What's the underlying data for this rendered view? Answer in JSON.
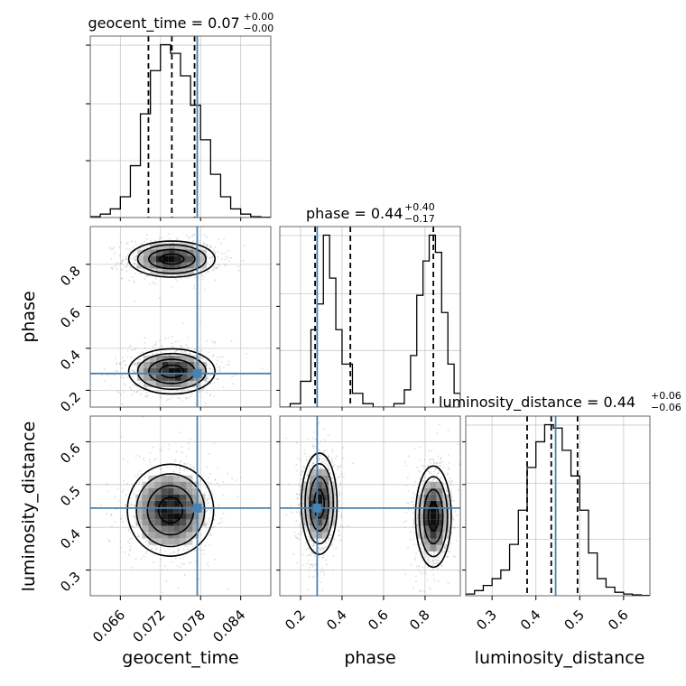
{
  "chart_data": {
    "type": "corner",
    "parameters": [
      "geocent_time",
      "phase",
      "luminosity_distance"
    ],
    "truth": {
      "geocent_time": 0.0775,
      "phase": 0.28,
      "luminosity_distance": 0.445
    },
    "colors": {
      "truth": "#4682b4",
      "hist": "#000000",
      "grid": "#c8c8c8",
      "points": "#9a9a9a"
    },
    "grid": true,
    "diagonal": [
      {
        "parameter": "geocent_time",
        "title_main": "geocent_time = 0.07",
        "title_plus": "+0.00",
        "title_minus": "−0.00",
        "xlim": [
          0.0615,
          0.0885
        ],
        "ylim": [
          0,
          1.05
        ],
        "quantiles": [
          0.0702,
          0.0737,
          0.0771
        ],
        "hist_x": [
          0.0615,
          0.063,
          0.0645,
          0.066,
          0.0675,
          0.069,
          0.0705,
          0.072,
          0.0735,
          0.075,
          0.0765,
          0.078,
          0.0795,
          0.081,
          0.0825,
          0.084,
          0.0855,
          0.087,
          0.0885
        ],
        "hist_y": [
          0.005,
          0.02,
          0.05,
          0.12,
          0.3,
          0.6,
          0.85,
          1.0,
          0.95,
          0.82,
          0.65,
          0.45,
          0.25,
          0.12,
          0.05,
          0.02,
          0.005,
          0.002
        ],
        "xticks": [],
        "xtick_labels": []
      },
      {
        "parameter": "phase",
        "title_main": "phase = 0.44",
        "title_plus": "+0.40",
        "title_minus": "−0.17",
        "xlim": [
          0.1,
          0.97
        ],
        "ylim": [
          0,
          1.05
        ],
        "quantiles": [
          0.27,
          0.44,
          0.84
        ],
        "hist_x": [
          0.1,
          0.15,
          0.2,
          0.25,
          0.28,
          0.31,
          0.34,
          0.37,
          0.4,
          0.45,
          0.5,
          0.55,
          0.6,
          0.65,
          0.7,
          0.73,
          0.76,
          0.79,
          0.82,
          0.85,
          0.88,
          0.91,
          0.94,
          0.97
        ],
        "hist_y": [
          0.0,
          0.02,
          0.15,
          0.45,
          0.6,
          1.0,
          0.75,
          0.45,
          0.25,
          0.08,
          0.02,
          0.0,
          0.0,
          0.02,
          0.1,
          0.3,
          0.65,
          0.85,
          1.0,
          0.9,
          0.55,
          0.25,
          0.08
        ],
        "xticks": [
          0.2,
          0.4,
          0.6,
          0.8
        ],
        "xtick_labels": [
          "0.2",
          "0.4",
          "0.6",
          "0.8"
        ]
      },
      {
        "parameter": "luminosity_distance",
        "title_main": "luminosity_distance = 0.44",
        "title_plus": "+0.06",
        "title_minus": "−0.06",
        "xlim": [
          0.24,
          0.66
        ],
        "ylim": [
          0,
          1.05
        ],
        "quantiles": [
          0.38,
          0.435,
          0.495
        ],
        "hist_x": [
          0.24,
          0.26,
          0.28,
          0.3,
          0.32,
          0.34,
          0.36,
          0.38,
          0.4,
          0.42,
          0.44,
          0.46,
          0.48,
          0.5,
          0.52,
          0.54,
          0.56,
          0.58,
          0.6,
          0.62,
          0.64,
          0.66
        ],
        "hist_y": [
          0.01,
          0.03,
          0.06,
          0.1,
          0.15,
          0.3,
          0.5,
          0.75,
          0.9,
          1.0,
          0.98,
          0.85,
          0.7,
          0.5,
          0.25,
          0.1,
          0.05,
          0.02,
          0.01,
          0.005,
          0.002
        ],
        "xticks": [
          0.3,
          0.4,
          0.5,
          0.6
        ],
        "xtick_labels": [
          "0.3",
          "0.4",
          "0.5",
          "0.6"
        ]
      }
    ],
    "geocent_time_ticks": {
      "values": [
        0.066,
        0.072,
        0.078,
        0.084
      ],
      "labels": [
        "0.066",
        "0.072",
        "0.078",
        "0.084"
      ]
    },
    "phase_yticks": {
      "values": [
        0.2,
        0.4,
        0.6,
        0.8
      ],
      "labels": [
        "0.2",
        "0.4",
        "0.6",
        "0.8"
      ]
    },
    "lumdist_yticks": {
      "values": [
        0.3,
        0.4,
        0.5,
        0.6
      ],
      "labels": [
        "0.3",
        "0.4",
        "0.5",
        "0.6"
      ]
    },
    "blobs": [
      {
        "panel": "phase_vs_geocent_time",
        "cx": 0.0737,
        "cy": 0.825,
        "sx": 0.003,
        "sy": 0.04
      },
      {
        "panel": "phase_vs_geocent_time",
        "cx": 0.0737,
        "cy": 0.29,
        "sx": 0.003,
        "sy": 0.05
      },
      {
        "panel": "lumdist_vs_geocent_time",
        "cx": 0.0735,
        "cy": 0.44,
        "sx": 0.003,
        "sy": 0.05
      },
      {
        "panel": "lumdist_vs_phase",
        "cx": 0.29,
        "cy": 0.455,
        "sx": 0.04,
        "sy": 0.055
      },
      {
        "panel": "lumdist_vs_phase",
        "cx": 0.84,
        "cy": 0.425,
        "sx": 0.04,
        "sy": 0.055
      }
    ],
    "xlabels": [
      "geocent_time",
      "phase",
      "luminosity_distance"
    ],
    "ylabels": [
      "phase",
      "luminosity_distance"
    ]
  }
}
